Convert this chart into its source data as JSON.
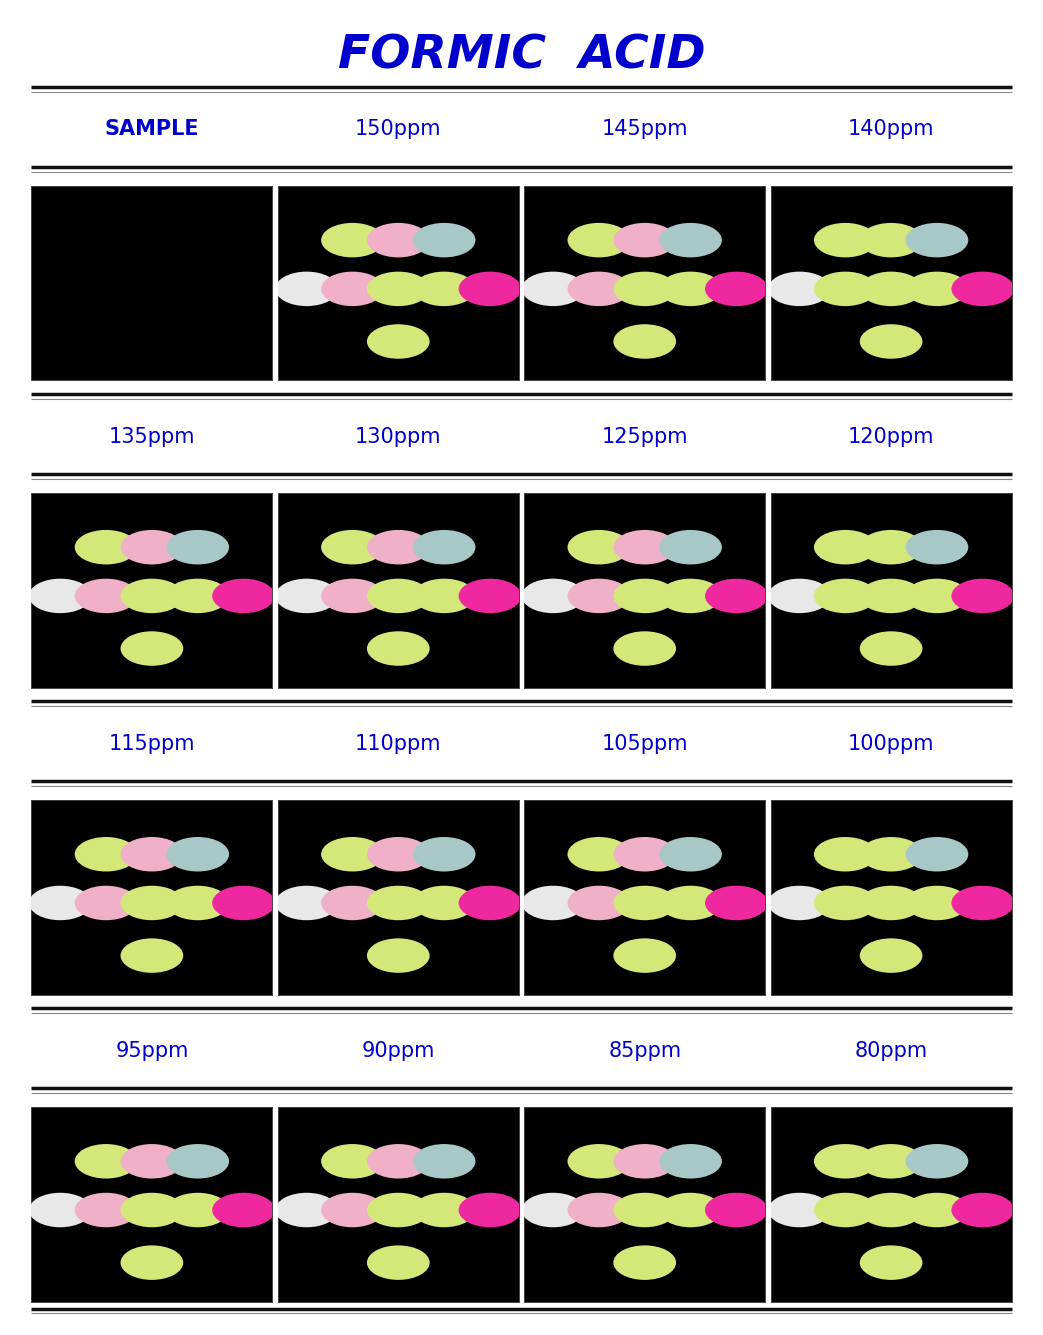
{
  "title": "FORMIC  ACID",
  "title_color": "#0000CC",
  "title_fontsize": 34,
  "background_color": "#ffffff",
  "rows": [
    {
      "labels": [
        "SAMPLE",
        "150ppm",
        "145ppm",
        "140ppm"
      ],
      "label_bold": [
        true,
        false,
        false,
        false
      ],
      "panels": [
        {
          "dots": []
        },
        {
          "dots": [
            {
              "row": 0,
              "colors": [
                "#d4e87a",
                "#f0b0c8",
                "#a8c8c8"
              ]
            },
            {
              "row": 1,
              "colors": [
                "#e8e8e8",
                "#f0b0c8",
                "#d4e87a",
                "#d4e87a",
                "#f028a0"
              ]
            },
            {
              "row": 2,
              "colors": [
                "#d4e87a"
              ]
            }
          ]
        },
        {
          "dots": [
            {
              "row": 0,
              "colors": [
                "#d4e87a",
                "#f0b0c8",
                "#a8c8c8"
              ]
            },
            {
              "row": 1,
              "colors": [
                "#e8e8e8",
                "#f0b0c8",
                "#d4e87a",
                "#d4e87a",
                "#f028a0"
              ]
            },
            {
              "row": 2,
              "colors": [
                "#d4e87a"
              ]
            }
          ]
        },
        {
          "dots": [
            {
              "row": 0,
              "colors": [
                "#d4e87a",
                "#d4e87a",
                "#a8c8c8"
              ]
            },
            {
              "row": 1,
              "colors": [
                "#e8e8e8",
                "#d4e87a",
                "#d4e87a",
                "#d4e87a",
                "#f028a0"
              ]
            },
            {
              "row": 2,
              "colors": [
                "#d4e87a"
              ]
            }
          ]
        }
      ]
    },
    {
      "labels": [
        "135ppm",
        "130ppm",
        "125ppm",
        "120ppm"
      ],
      "label_bold": [
        false,
        false,
        false,
        false
      ],
      "panels": [
        {
          "dots": [
            {
              "row": 0,
              "colors": [
                "#d4e87a",
                "#f0b0c8",
                "#a8c8c8"
              ]
            },
            {
              "row": 1,
              "colors": [
                "#e8e8e8",
                "#f0b0c8",
                "#d4e87a",
                "#d4e87a",
                "#f028a0"
              ]
            },
            {
              "row": 2,
              "colors": [
                "#d4e87a"
              ]
            }
          ]
        },
        {
          "dots": [
            {
              "row": 0,
              "colors": [
                "#d4e87a",
                "#f0b0c8",
                "#a8c8c8"
              ]
            },
            {
              "row": 1,
              "colors": [
                "#e8e8e8",
                "#f0b0c8",
                "#d4e87a",
                "#d4e87a",
                "#f028a0"
              ]
            },
            {
              "row": 2,
              "colors": [
                "#d4e87a"
              ]
            }
          ]
        },
        {
          "dots": [
            {
              "row": 0,
              "colors": [
                "#d4e87a",
                "#f0b0c8",
                "#a8c8c8"
              ]
            },
            {
              "row": 1,
              "colors": [
                "#e8e8e8",
                "#f0b0c8",
                "#d4e87a",
                "#d4e87a",
                "#f028a0"
              ]
            },
            {
              "row": 2,
              "colors": [
                "#d4e87a"
              ]
            }
          ]
        },
        {
          "dots": [
            {
              "row": 0,
              "colors": [
                "#d4e87a",
                "#d4e87a",
                "#a8c8c8"
              ]
            },
            {
              "row": 1,
              "colors": [
                "#e8e8e8",
                "#d4e87a",
                "#d4e87a",
                "#d4e87a",
                "#f028a0"
              ]
            },
            {
              "row": 2,
              "colors": [
                "#d4e87a"
              ]
            }
          ]
        }
      ]
    },
    {
      "labels": [
        "115ppm",
        "110ppm",
        "105ppm",
        "100ppm"
      ],
      "label_bold": [
        false,
        false,
        false,
        false
      ],
      "panels": [
        {
          "dots": [
            {
              "row": 0,
              "colors": [
                "#d4e87a",
                "#f0b0c8",
                "#a8c8c8"
              ]
            },
            {
              "row": 1,
              "colors": [
                "#e8e8e8",
                "#f0b0c8",
                "#d4e87a",
                "#d4e87a",
                "#f028a0"
              ]
            },
            {
              "row": 2,
              "colors": [
                "#d4e87a"
              ]
            }
          ]
        },
        {
          "dots": [
            {
              "row": 0,
              "colors": [
                "#d4e87a",
                "#f0b0c8",
                "#a8c8c8"
              ]
            },
            {
              "row": 1,
              "colors": [
                "#e8e8e8",
                "#f0b0c8",
                "#d4e87a",
                "#d4e87a",
                "#f028a0"
              ]
            },
            {
              "row": 2,
              "colors": [
                "#d4e87a"
              ]
            }
          ]
        },
        {
          "dots": [
            {
              "row": 0,
              "colors": [
                "#d4e87a",
                "#f0b0c8",
                "#a8c8c8"
              ]
            },
            {
              "row": 1,
              "colors": [
                "#e8e8e8",
                "#f0b0c8",
                "#d4e87a",
                "#d4e87a",
                "#f028a0"
              ]
            },
            {
              "row": 2,
              "colors": [
                "#d4e87a"
              ]
            }
          ]
        },
        {
          "dots": [
            {
              "row": 0,
              "colors": [
                "#d4e87a",
                "#d4e87a",
                "#a8c8c8"
              ]
            },
            {
              "row": 1,
              "colors": [
                "#e8e8e8",
                "#d4e87a",
                "#d4e87a",
                "#d4e87a",
                "#f028a0"
              ]
            },
            {
              "row": 2,
              "colors": [
                "#d4e87a"
              ]
            }
          ]
        }
      ]
    },
    {
      "labels": [
        "95ppm",
        "90ppm",
        "85ppm",
        "80ppm"
      ],
      "label_bold": [
        false,
        false,
        false,
        false
      ],
      "panels": [
        {
          "dots": [
            {
              "row": 0,
              "colors": [
                "#d4e87a",
                "#f0b0c8",
                "#a8c8c8"
              ]
            },
            {
              "row": 1,
              "colors": [
                "#e8e8e8",
                "#f0b0c8",
                "#d4e87a",
                "#d4e87a",
                "#f028a0"
              ]
            },
            {
              "row": 2,
              "colors": [
                "#d4e87a"
              ]
            }
          ]
        },
        {
          "dots": [
            {
              "row": 0,
              "colors": [
                "#d4e87a",
                "#f0b0c8",
                "#a8c8c8"
              ]
            },
            {
              "row": 1,
              "colors": [
                "#e8e8e8",
                "#f0b0c8",
                "#d4e87a",
                "#d4e87a",
                "#f028a0"
              ]
            },
            {
              "row": 2,
              "colors": [
                "#d4e87a"
              ]
            }
          ]
        },
        {
          "dots": [
            {
              "row": 0,
              "colors": [
                "#d4e87a",
                "#f0b0c8",
                "#a8c8c8"
              ]
            },
            {
              "row": 1,
              "colors": [
                "#e8e8e8",
                "#f0b0c8",
                "#d4e87a",
                "#d4e87a",
                "#f028a0"
              ]
            },
            {
              "row": 2,
              "colors": [
                "#d4e87a"
              ]
            }
          ]
        },
        {
          "dots": [
            {
              "row": 0,
              "colors": [
                "#d4e87a",
                "#d4e87a",
                "#a8c8c8"
              ]
            },
            {
              "row": 1,
              "colors": [
                "#e8e8e8",
                "#d4e87a",
                "#d4e87a",
                "#d4e87a",
                "#f028a0"
              ]
            },
            {
              "row": 2,
              "colors": [
                "#d4e87a"
              ]
            }
          ]
        }
      ]
    }
  ],
  "label_color": "#0000CC",
  "label_fontsize": 15,
  "sep_color_thick": "#111111",
  "sep_color_thin": "#888888"
}
